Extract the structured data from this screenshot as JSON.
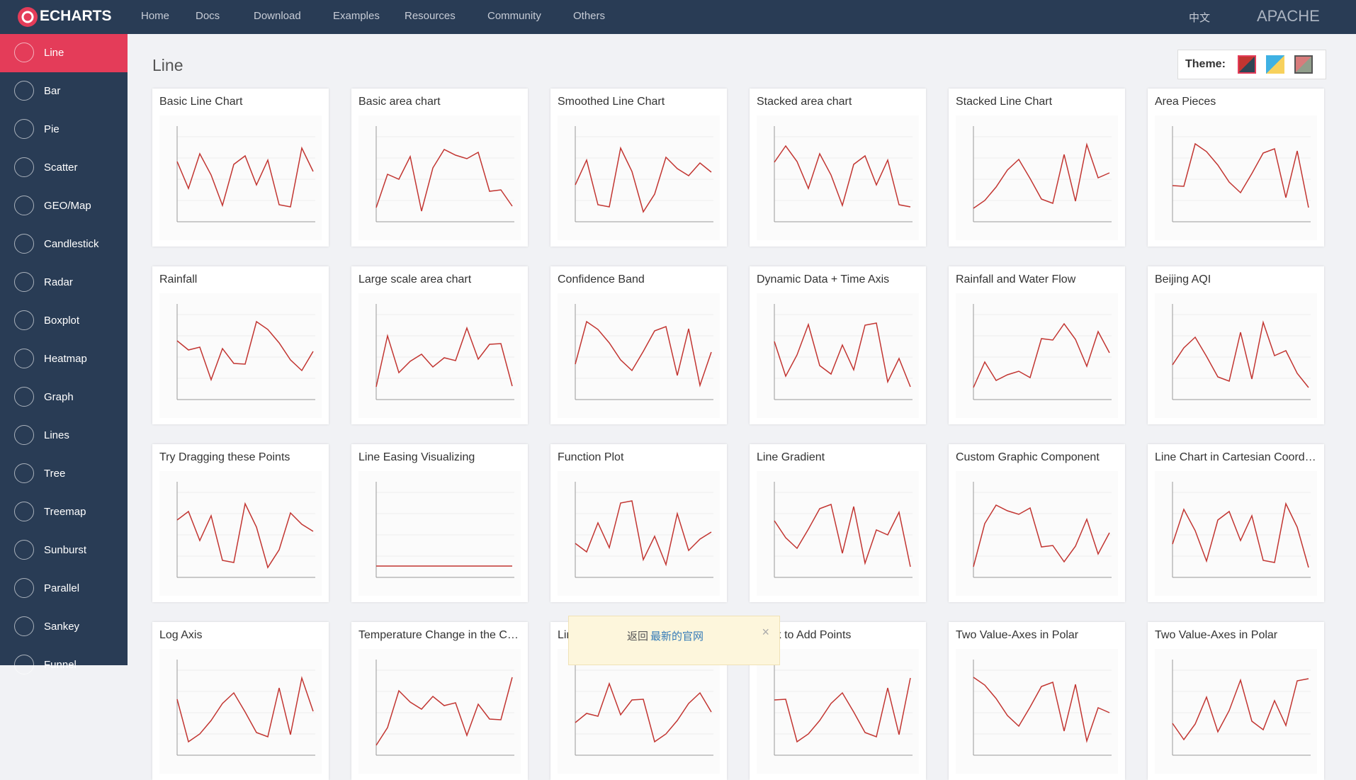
{
  "nav": {
    "logo": "ECHARTS",
    "links": [
      "Home",
      "Docs",
      "Download",
      "Examples",
      "Resources",
      "Community",
      "Others"
    ],
    "lang": "中文",
    "apache": "APACHE"
  },
  "sidebar": [
    "Line",
    "Bar",
    "Pie",
    "Scatter",
    "GEO/Map",
    "Candlestick",
    "Radar",
    "Boxplot",
    "Heatmap",
    "Graph",
    "Lines",
    "Tree",
    "Treemap",
    "Sunburst",
    "Parallel",
    "Sankey",
    "Funnel"
  ],
  "heading": "Line",
  "theme_label": "Theme:",
  "cards": [
    "Basic Line Chart",
    "Basic area chart",
    "Smoothed Line Chart",
    "Stacked area chart",
    "Stacked Line Chart",
    "Area Pieces",
    "Rainfall",
    "Large scale area chart",
    "Confidence Band",
    "Dynamic Data + Time Axis",
    "Rainfall and Water Flow",
    "Beijing AQI",
    "Try Dragging these Points",
    "Line Easing Visualizing",
    "Function Plot",
    "Line Gradient",
    "Custom Graphic Component",
    "Line Chart in Cartesian Coordinate System",
    "Log Axis",
    "Temperature Change in the Coming Week",
    "Line Style and Item Style",
    "Click to Add Points",
    "Two Value-Axes in Polar",
    "Two Value-Axes in Polar"
  ],
  "notice": {
    "prefix": "返回",
    "link": "最新的官网"
  }
}
